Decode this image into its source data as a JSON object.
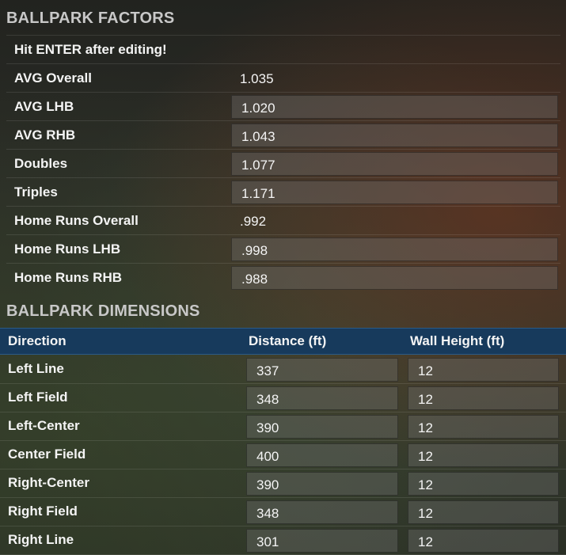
{
  "factors": {
    "title": "BALLPARK FACTORS",
    "note": "Hit ENTER after editing!",
    "rows": [
      {
        "label": "AVG Overall",
        "value": "1.035"
      },
      {
        "label": "AVG LHB",
        "value": "1.020"
      },
      {
        "label": "AVG RHB",
        "value": "1.043"
      },
      {
        "label": "Doubles",
        "value": "1.077"
      },
      {
        "label": "Triples",
        "value": "1.171"
      },
      {
        "label": "Home Runs Overall",
        "value": ".992"
      },
      {
        "label": "Home Runs LHB",
        "value": ".998"
      },
      {
        "label": "Home Runs RHB",
        "value": ".988"
      }
    ]
  },
  "dimensions": {
    "title": "BALLPARK DIMENSIONS",
    "columns": [
      "Direction",
      "Distance (ft)",
      "Wall Height (ft)"
    ],
    "rows": [
      {
        "direction": "Left Line",
        "distance": "337",
        "wall_height": "12"
      },
      {
        "direction": "Left Field",
        "distance": "348",
        "wall_height": "12"
      },
      {
        "direction": "Left-Center",
        "distance": "390",
        "wall_height": "12"
      },
      {
        "direction": "Center Field",
        "distance": "400",
        "wall_height": "12"
      },
      {
        "direction": "Right-Center",
        "distance": "390",
        "wall_height": "12"
      },
      {
        "direction": "Right Field",
        "distance": "348",
        "wall_height": "12"
      },
      {
        "direction": "Right Line",
        "distance": "301",
        "wall_height": "12"
      }
    ]
  },
  "colors": {
    "header_bar": "#173a5c",
    "field_bg": "#5a5a5a",
    "text": "#f4f4f4",
    "title_text": "#c8c8c8"
  }
}
